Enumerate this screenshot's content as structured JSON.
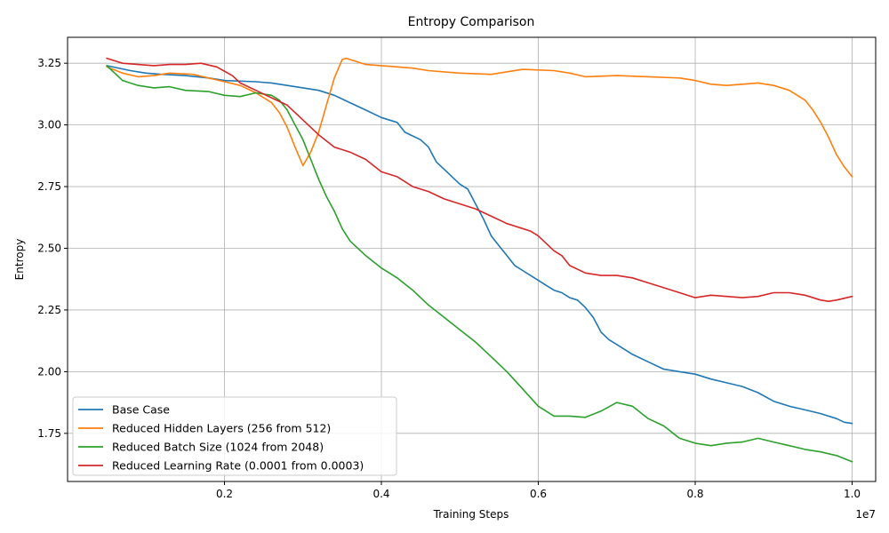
{
  "chart_data": {
    "type": "line",
    "title": "Entropy Comparison",
    "xlabel": "Training Steps",
    "ylabel": "Entropy",
    "x_offset_label": "1e7",
    "xlim": [
      0.0,
      1.03
    ],
    "ylim": [
      1.555,
      3.355
    ],
    "xticks": [
      0.2,
      0.4,
      0.6,
      0.8,
      1.0
    ],
    "xtick_labels": [
      "0.2",
      "0.4",
      "0.6",
      "0.8",
      "1.0"
    ],
    "yticks": [
      1.75,
      2.0,
      2.25,
      2.5,
      2.75,
      3.0,
      3.25
    ],
    "ytick_labels": [
      "1.75",
      "2.00",
      "2.25",
      "2.50",
      "2.75",
      "3.00",
      "3.25"
    ],
    "grid": true,
    "legend_position": "lower-left",
    "series": [
      {
        "name": "Base Case",
        "color": "#1f77b4",
        "x": [
          0.05,
          0.08,
          0.1,
          0.12,
          0.15,
          0.18,
          0.2,
          0.24,
          0.26,
          0.28,
          0.3,
          0.32,
          0.34,
          0.36,
          0.38,
          0.4,
          0.42,
          0.43,
          0.45,
          0.46,
          0.47,
          0.48,
          0.49,
          0.5,
          0.51,
          0.52,
          0.53,
          0.54,
          0.55,
          0.56,
          0.57,
          0.58,
          0.59,
          0.6,
          0.61,
          0.62,
          0.63,
          0.64,
          0.65,
          0.66,
          0.67,
          0.68,
          0.69,
          0.7,
          0.72,
          0.74,
          0.76,
          0.78,
          0.8,
          0.82,
          0.84,
          0.86,
          0.88,
          0.9,
          0.92,
          0.94,
          0.96,
          0.98,
          0.99,
          1.0
        ],
        "y": [
          3.24,
          3.22,
          3.21,
          3.205,
          3.2,
          3.19,
          3.18,
          3.175,
          3.17,
          3.16,
          3.15,
          3.14,
          3.12,
          3.09,
          3.06,
          3.03,
          3.01,
          2.97,
          2.94,
          2.91,
          2.85,
          2.82,
          2.79,
          2.76,
          2.74,
          2.68,
          2.62,
          2.55,
          2.51,
          2.47,
          2.43,
          2.41,
          2.39,
          2.37,
          2.35,
          2.33,
          2.32,
          2.3,
          2.29,
          2.26,
          2.22,
          2.16,
          2.13,
          2.11,
          2.07,
          2.04,
          2.01,
          2.0,
          1.99,
          1.97,
          1.955,
          1.94,
          1.915,
          1.88,
          1.86,
          1.845,
          1.83,
          1.81,
          1.795,
          1.79
        ]
      },
      {
        "name": "Reduced Hidden Layers (256 from 512)",
        "color": "#ff7f0e",
        "x": [
          0.05,
          0.07,
          0.09,
          0.11,
          0.13,
          0.16,
          0.2,
          0.22,
          0.24,
          0.26,
          0.27,
          0.28,
          0.29,
          0.3,
          0.31,
          0.32,
          0.33,
          0.34,
          0.35,
          0.355,
          0.36,
          0.38,
          0.4,
          0.42,
          0.44,
          0.46,
          0.5,
          0.54,
          0.58,
          0.62,
          0.64,
          0.66,
          0.7,
          0.74,
          0.78,
          0.8,
          0.82,
          0.84,
          0.86,
          0.88,
          0.9,
          0.92,
          0.94,
          0.95,
          0.96,
          0.97,
          0.98,
          0.99,
          1.0
        ],
        "y": [
          3.235,
          3.21,
          3.195,
          3.2,
          3.21,
          3.205,
          3.175,
          3.16,
          3.13,
          3.09,
          3.05,
          2.99,
          2.91,
          2.835,
          2.89,
          2.97,
          3.08,
          3.19,
          3.265,
          3.27,
          3.265,
          3.245,
          3.24,
          3.235,
          3.23,
          3.22,
          3.21,
          3.205,
          3.225,
          3.22,
          3.21,
          3.195,
          3.2,
          3.195,
          3.19,
          3.18,
          3.165,
          3.16,
          3.165,
          3.17,
          3.16,
          3.14,
          3.1,
          3.06,
          3.01,
          2.95,
          2.88,
          2.83,
          2.79
        ]
      },
      {
        "name": "Reduced Batch Size (1024 from 2048)",
        "color": "#2ca02c",
        "x": [
          0.05,
          0.07,
          0.09,
          0.11,
          0.13,
          0.15,
          0.18,
          0.2,
          0.22,
          0.24,
          0.26,
          0.27,
          0.28,
          0.29,
          0.3,
          0.31,
          0.32,
          0.33,
          0.34,
          0.35,
          0.36,
          0.38,
          0.4,
          0.42,
          0.44,
          0.46,
          0.48,
          0.5,
          0.52,
          0.54,
          0.56,
          0.58,
          0.6,
          0.62,
          0.64,
          0.66,
          0.68,
          0.7,
          0.72,
          0.74,
          0.76,
          0.78,
          0.8,
          0.82,
          0.84,
          0.86,
          0.88,
          0.9,
          0.92,
          0.94,
          0.96,
          0.98,
          1.0
        ],
        "y": [
          3.24,
          3.18,
          3.16,
          3.15,
          3.155,
          3.14,
          3.135,
          3.12,
          3.115,
          3.13,
          3.12,
          3.1,
          3.06,
          3.0,
          2.94,
          2.86,
          2.78,
          2.71,
          2.65,
          2.58,
          2.53,
          2.47,
          2.42,
          2.38,
          2.33,
          2.27,
          2.22,
          2.17,
          2.12,
          2.06,
          2.0,
          1.93,
          1.86,
          1.82,
          1.82,
          1.815,
          1.84,
          1.875,
          1.86,
          1.81,
          1.78,
          1.73,
          1.71,
          1.7,
          1.71,
          1.715,
          1.73,
          1.715,
          1.7,
          1.685,
          1.675,
          1.66,
          1.635
        ]
      },
      {
        "name": "Reduced Learning Rate (0.0001 from 0.0003)",
        "color": "#d62728",
        "x": [
          0.05,
          0.07,
          0.09,
          0.11,
          0.13,
          0.15,
          0.17,
          0.19,
          0.21,
          0.22,
          0.24,
          0.26,
          0.28,
          0.3,
          0.32,
          0.34,
          0.36,
          0.38,
          0.4,
          0.42,
          0.44,
          0.46,
          0.48,
          0.5,
          0.52,
          0.54,
          0.56,
          0.58,
          0.59,
          0.6,
          0.61,
          0.62,
          0.63,
          0.64,
          0.66,
          0.68,
          0.7,
          0.72,
          0.74,
          0.76,
          0.78,
          0.8,
          0.82,
          0.84,
          0.86,
          0.88,
          0.9,
          0.92,
          0.94,
          0.96,
          0.97,
          0.98,
          1.0
        ],
        "y": [
          3.27,
          3.25,
          3.245,
          3.24,
          3.245,
          3.245,
          3.25,
          3.235,
          3.2,
          3.17,
          3.14,
          3.11,
          3.08,
          3.02,
          2.96,
          2.91,
          2.89,
          2.86,
          2.81,
          2.79,
          2.75,
          2.73,
          2.7,
          2.68,
          2.66,
          2.63,
          2.6,
          2.58,
          2.57,
          2.55,
          2.52,
          2.49,
          2.47,
          2.43,
          2.4,
          2.39,
          2.39,
          2.38,
          2.36,
          2.34,
          2.32,
          2.3,
          2.31,
          2.305,
          2.3,
          2.305,
          2.32,
          2.32,
          2.31,
          2.29,
          2.285,
          2.29,
          2.305
        ]
      }
    ]
  }
}
